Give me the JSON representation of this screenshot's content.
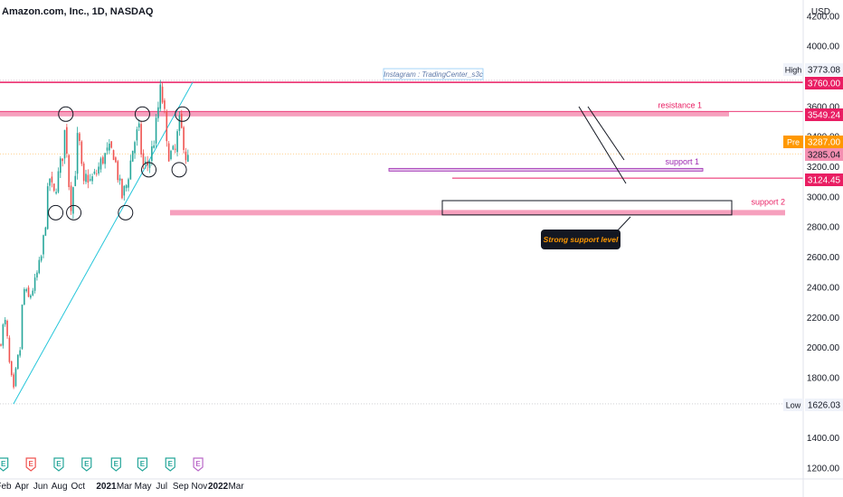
{
  "header": {
    "title": "Amazon.com, Inc., 1D, NASDAQ"
  },
  "currency": "USD",
  "watermark": "Instagram : TradingCenter_s3c",
  "colors": {
    "up": "#26a69a",
    "down": "#ef5350",
    "resistance": "#e91e63",
    "zone": "#f48fb1",
    "support1": "#9c27b0",
    "trendline": "#26c6da",
    "label_dark": "#131722",
    "pre": "#ff9800"
  },
  "chart_data": {
    "type": "candlestick",
    "x_labels": [
      "Feb",
      "Apr",
      "Jun",
      "Aug",
      "Oct",
      "2021",
      "Mar",
      "May",
      "Jul",
      "Sep",
      "Nov",
      "2022",
      "Mar"
    ],
    "y_ticks": [
      1200,
      1400,
      1600,
      1800,
      2000,
      2200,
      2400,
      2600,
      2800,
      3000,
      3200,
      3400,
      3600,
      4000,
      4200
    ],
    "y_range": [
      1175,
      4275
    ],
    "price_labels": [
      {
        "name": "High",
        "value": "3773.08"
      },
      {
        "name": "",
        "value": "3760.00"
      },
      {
        "name": "",
        "value": "3549.24"
      },
      {
        "name": "Pre",
        "value": "3287.00"
      },
      {
        "name": "",
        "value": "3285.04"
      },
      {
        "name": "",
        "value": "3124.45"
      },
      {
        "name": "Low",
        "value": "1626.03"
      }
    ],
    "annotations": [
      {
        "text": "resistance 1",
        "price": 3549
      },
      {
        "text": "support 1",
        "price": 3180
      },
      {
        "text": "support 2",
        "price": 2895
      },
      {
        "text": "Strong support level"
      }
    ],
    "levels": [
      {
        "name": "high line",
        "price": 3760
      },
      {
        "name": "resistance 1",
        "price": 3549
      },
      {
        "name": "support 1",
        "price": 3180
      },
      {
        "name": "support 3124",
        "price": 3124
      },
      {
        "name": "support 2",
        "price": 2895
      }
    ],
    "trendline": {
      "from": {
        "date": "2020-03-16",
        "price": 1626
      },
      "to": {
        "date": "2021-10-10",
        "price": 3760
      }
    },
    "price_path": [
      {
        "date": "2020-02-01",
        "price": 2010
      },
      {
        "date": "2020-02-12",
        "price": 2150
      },
      {
        "date": "2020-02-20",
        "price": 2170
      },
      {
        "date": "2020-03-02",
        "price": 1900
      },
      {
        "date": "2020-03-16",
        "price": 1700
      },
      {
        "date": "2020-03-27",
        "price": 1900
      },
      {
        "date": "2020-04-08",
        "price": 2000
      },
      {
        "date": "2020-04-16",
        "price": 2400
      },
      {
        "date": "2020-05-05",
        "price": 2320
      },
      {
        "date": "2020-05-25",
        "price": 2430
      },
      {
        "date": "2020-06-15",
        "price": 2600
      },
      {
        "date": "2020-07-01",
        "price": 2880
      },
      {
        "date": "2020-07-10",
        "price": 3150
      },
      {
        "date": "2020-07-25",
        "price": 3000
      },
      {
        "date": "2020-08-10",
        "price": 3150
      },
      {
        "date": "2020-08-25",
        "price": 3300
      },
      {
        "date": "2020-09-02",
        "price": 3500
      },
      {
        "date": "2020-09-10",
        "price": 3150
      },
      {
        "date": "2020-09-20",
        "price": 2950
      },
      {
        "date": "2020-10-05",
        "price": 3200
      },
      {
        "date": "2020-10-13",
        "price": 3450
      },
      {
        "date": "2020-10-30",
        "price": 3050
      },
      {
        "date": "2020-11-10",
        "price": 3150
      },
      {
        "date": "2020-11-20",
        "price": 3100
      },
      {
        "date": "2020-12-10",
        "price": 3150
      },
      {
        "date": "2020-12-31",
        "price": 3250
      },
      {
        "date": "2021-01-20",
        "price": 3300
      },
      {
        "date": "2021-02-05",
        "price": 3300
      },
      {
        "date": "2021-03-05",
        "price": 3000
      },
      {
        "date": "2021-03-20",
        "price": 3080
      },
      {
        "date": "2021-04-12",
        "price": 3350
      },
      {
        "date": "2021-04-29",
        "price": 3450
      },
      {
        "date": "2021-05-12",
        "price": 3200
      },
      {
        "date": "2021-06-01",
        "price": 3220
      },
      {
        "date": "2021-06-20",
        "price": 3400
      },
      {
        "date": "2021-07-08",
        "price": 3700
      },
      {
        "date": "2021-07-20",
        "price": 3600
      },
      {
        "date": "2021-07-30",
        "price": 3300
      },
      {
        "date": "2021-08-15",
        "price": 3280
      },
      {
        "date": "2021-08-27",
        "price": 3300
      },
      {
        "date": "2021-09-07",
        "price": 3500
      },
      {
        "date": "2021-09-20",
        "price": 3400
      },
      {
        "date": "2021-10-05",
        "price": 3200
      },
      {
        "date": "2021-10-08",
        "price": 3285
      }
    ],
    "event_markers": [
      {
        "label": "E",
        "kind": "earnings"
      },
      {
        "label": "E",
        "kind": "earnings-miss"
      },
      {
        "label": "E",
        "kind": "earnings"
      },
      {
        "label": "E",
        "kind": "earnings"
      },
      {
        "label": "E",
        "kind": "earnings"
      },
      {
        "label": "E",
        "kind": "earnings"
      },
      {
        "label": "E",
        "kind": "earnings"
      },
      {
        "label": "E",
        "kind": "earnings-upcoming"
      }
    ]
  }
}
